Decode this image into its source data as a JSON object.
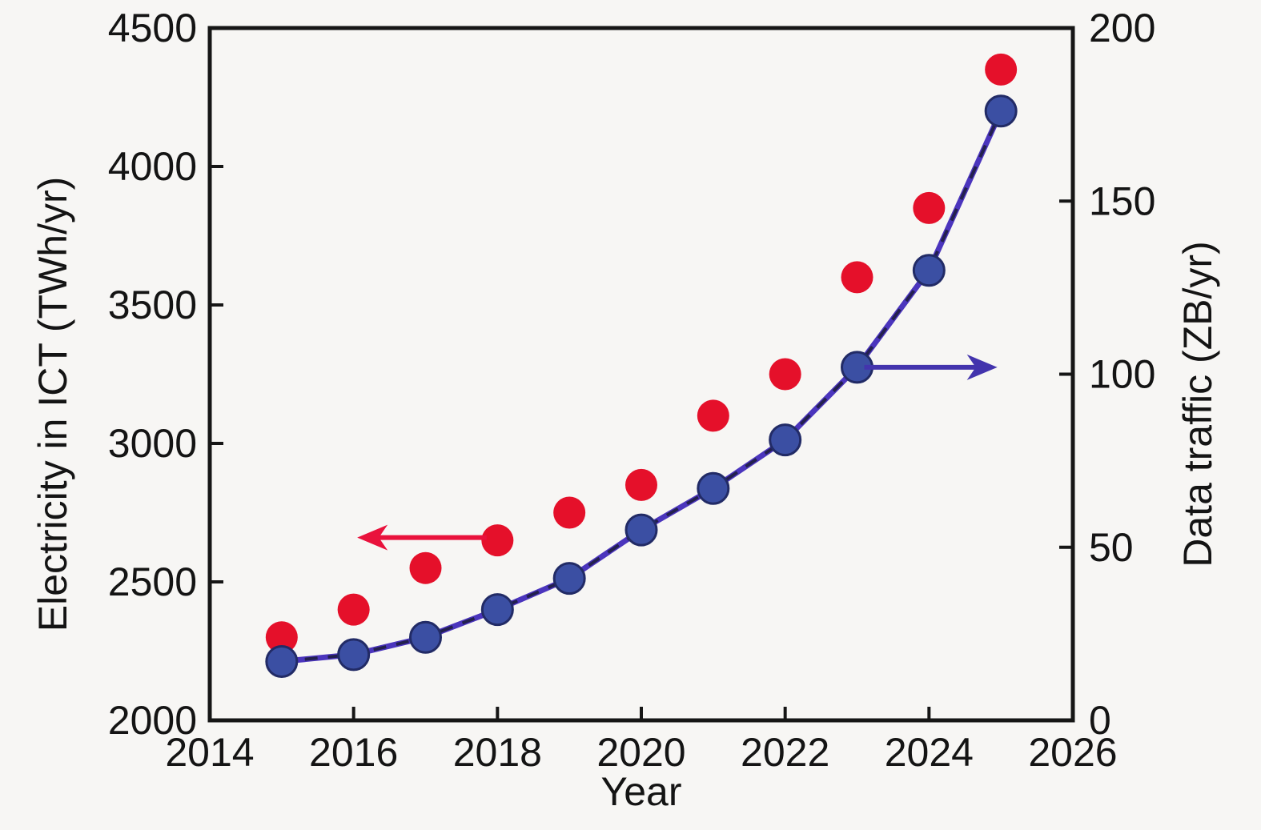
{
  "chart_data": {
    "type": "scatter",
    "x": [
      2015,
      2016,
      2017,
      2018,
      2019,
      2020,
      2021,
      2022,
      2023,
      2024,
      2025
    ],
    "series": [
      {
        "name": "Electricity in ICT",
        "axis": "left",
        "marker": "circle",
        "marker_color": "#e5102a",
        "line": false,
        "values": [
          2300,
          2400,
          2550,
          2650,
          2750,
          2850,
          3100,
          3250,
          3600,
          3850,
          4350
        ]
      },
      {
        "name": "Data traffic",
        "axis": "right",
        "marker": "circle",
        "marker_color": "#3b4fa3",
        "marker_edge_color": "#222b66",
        "line": true,
        "line_color": "#4b35bd",
        "line_dash_overlay_color": "#23204f",
        "values": [
          17,
          19,
          24,
          32,
          41,
          55,
          67,
          81,
          102,
          130,
          176
        ]
      }
    ],
    "xlabel": "Year",
    "ylabel_left": "Electricity in ICT (TWh/yr)",
    "ylabel_right": "Data traffic (ZB/yr)",
    "xlim": [
      2014,
      2026
    ],
    "ylim_left": [
      2000,
      4500
    ],
    "ylim_right": [
      0,
      200
    ],
    "xticks": [
      2014,
      2016,
      2018,
      2020,
      2022,
      2024,
      2026
    ],
    "yticks_left": [
      2000,
      2500,
      3000,
      3500,
      4000,
      4500
    ],
    "yticks_right": [
      0,
      50,
      100,
      150,
      200
    ],
    "grid": false,
    "legend": "none",
    "frame": "box",
    "background_color": "#f7f6f4",
    "frame_color": "#161616",
    "tick_label_color": "#141414",
    "annotations": [
      {
        "type": "arrow",
        "axis": "left",
        "direction": "left",
        "color": "#e9123c",
        "y_value": 2660,
        "x_from": 2017.85,
        "x_to": 2016.05
      },
      {
        "type": "arrow",
        "axis": "right",
        "direction": "right",
        "color": "#4334ad",
        "y_value": 102,
        "x_from": 2023.1,
        "x_to": 2024.95
      }
    ]
  }
}
